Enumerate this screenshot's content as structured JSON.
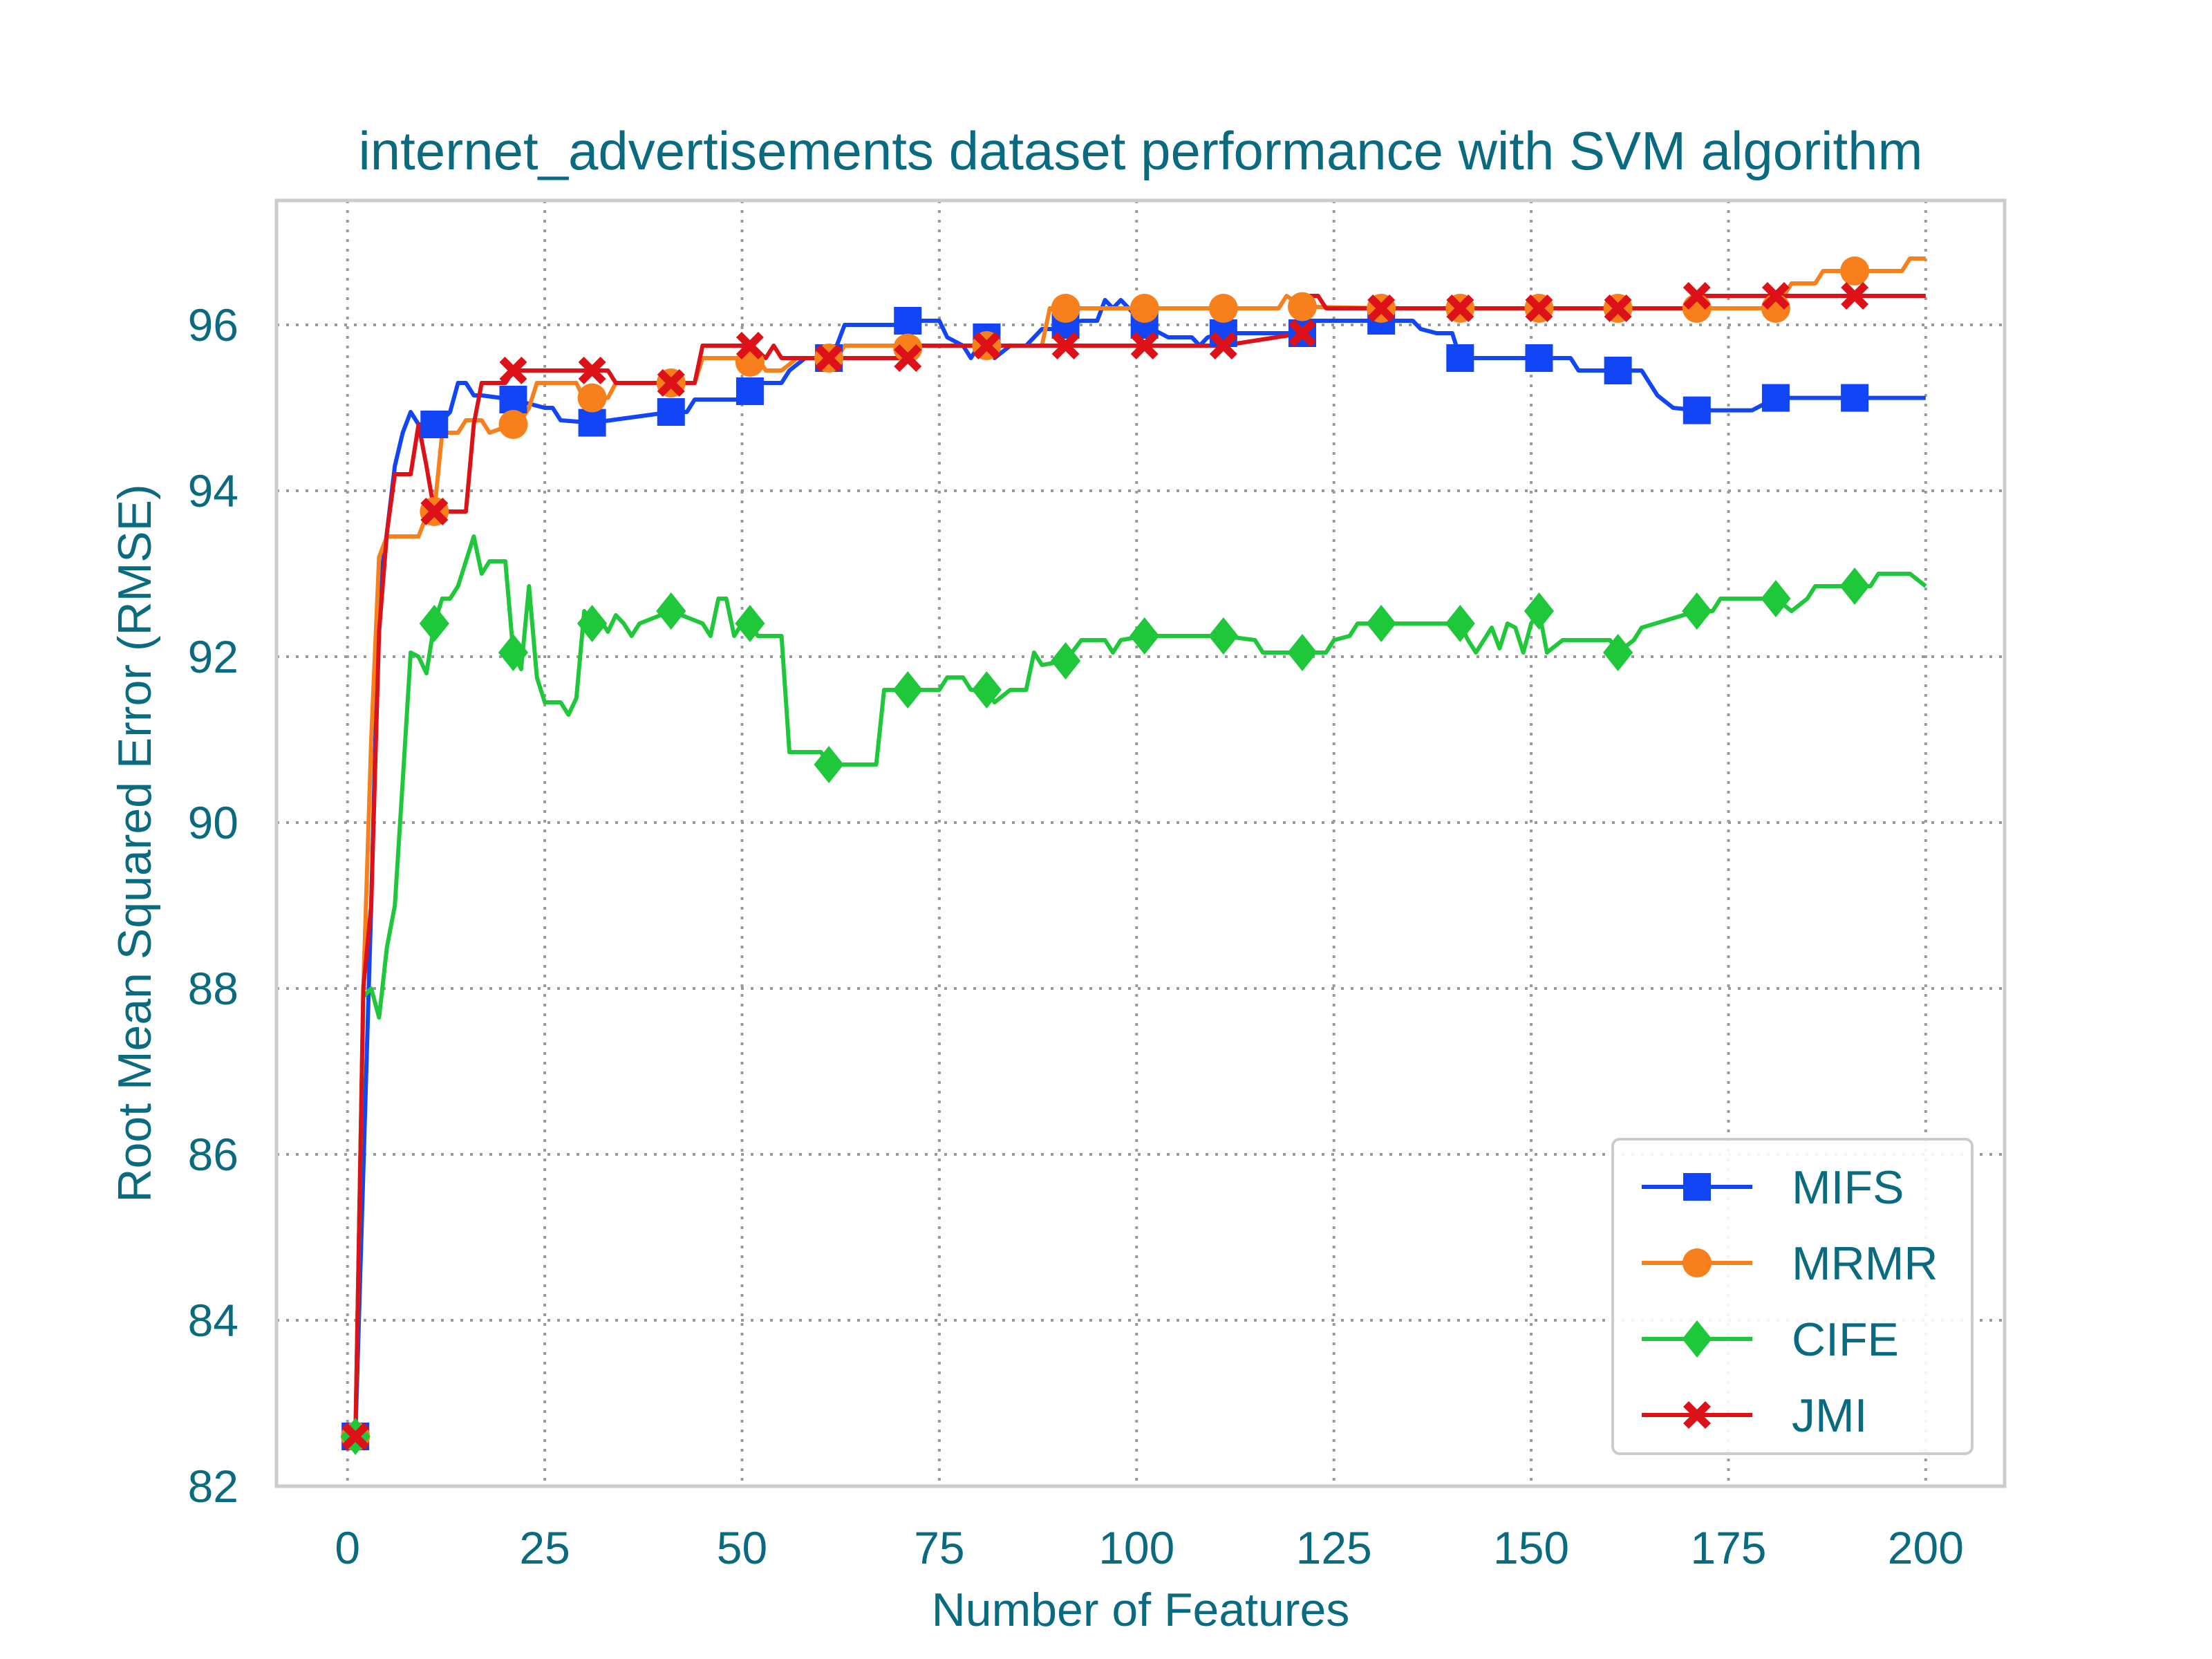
{
  "colors": {
    "text": "#0a6a80",
    "grid": "#9a9a9a",
    "frame": "#cccccc",
    "MIFS": "#1245f5",
    "MRMR": "#f7801c",
    "CIFE": "#1fc83a",
    "JMI": "#dc1218"
  },
  "chart_data": {
    "type": "line",
    "title": "internet_advertisements dataset performance with SVM algorithm",
    "xlabel": "Number of Features",
    "ylabel": "Root Mean Squared Error (RMSE)",
    "xlim": [
      -9,
      210
    ],
    "ylim": [
      82,
      97.5
    ],
    "xticks": [
      0,
      25,
      50,
      75,
      100,
      125,
      150,
      175,
      200
    ],
    "yticks": [
      82,
      84,
      86,
      88,
      90,
      92,
      94,
      96
    ],
    "grid": true,
    "legend_position": "lower right",
    "series": [
      {
        "name": "MIFS",
        "marker": "square",
        "points": [
          [
            1,
            82.6
          ],
          [
            3,
            89.0
          ],
          [
            4,
            92.8
          ],
          [
            5,
            93.5
          ],
          [
            6,
            94.3
          ],
          [
            7,
            94.7
          ],
          [
            8,
            94.95
          ],
          [
            9,
            94.8
          ],
          [
            11,
            94.8
          ],
          [
            12,
            94.85
          ],
          [
            13,
            94.95
          ],
          [
            14,
            95.3
          ],
          [
            15,
            95.3
          ],
          [
            16,
            95.15
          ],
          [
            17,
            95.15
          ],
          [
            21,
            95.1
          ],
          [
            25,
            95.0
          ],
          [
            26,
            95.0
          ],
          [
            27,
            94.85
          ],
          [
            31,
            94.82
          ],
          [
            41,
            94.95
          ],
          [
            43,
            94.95
          ],
          [
            44,
            95.1
          ],
          [
            50,
            95.1
          ],
          [
            52,
            95.3
          ],
          [
            55,
            95.3
          ],
          [
            56,
            95.45
          ],
          [
            58,
            95.6
          ],
          [
            61,
            95.6
          ],
          [
            62,
            95.75
          ],
          [
            63,
            96.0
          ],
          [
            70,
            96.0
          ],
          [
            71,
            96.05
          ],
          [
            75,
            96.05
          ],
          [
            76,
            95.85
          ],
          [
            78,
            95.75
          ],
          [
            79,
            95.6
          ],
          [
            80,
            95.75
          ],
          [
            81,
            95.85
          ],
          [
            82,
            95.6
          ],
          [
            84,
            95.75
          ],
          [
            86,
            95.75
          ],
          [
            87,
            95.85
          ],
          [
            88,
            95.95
          ],
          [
            90,
            95.95
          ],
          [
            91,
            96.0
          ],
          [
            93,
            96.05
          ],
          [
            95,
            96.05
          ],
          [
            96,
            96.3
          ],
          [
            97,
            96.2
          ],
          [
            98,
            96.3
          ],
          [
            99,
            96.2
          ],
          [
            100,
            96.1
          ],
          [
            101,
            96.0
          ],
          [
            102,
            95.95
          ],
          [
            104,
            95.85
          ],
          [
            107,
            95.85
          ],
          [
            108,
            95.75
          ],
          [
            109,
            95.85
          ],
          [
            111,
            95.9
          ],
          [
            121,
            95.9
          ],
          [
            122,
            96.05
          ],
          [
            131,
            96.05
          ],
          [
            135,
            96.05
          ],
          [
            136,
            95.95
          ],
          [
            138,
            95.9
          ],
          [
            140,
            95.9
          ],
          [
            141,
            95.6
          ],
          [
            151,
            95.6
          ],
          [
            155,
            95.6
          ],
          [
            156,
            95.45
          ],
          [
            161,
            95.45
          ],
          [
            164,
            95.45
          ],
          [
            165,
            95.3
          ],
          [
            166,
            95.15
          ],
          [
            168,
            95.0
          ],
          [
            171,
            94.97
          ],
          [
            178,
            94.97
          ],
          [
            181,
            95.12
          ],
          [
            191,
            95.12
          ],
          [
            200,
            95.12
          ]
        ],
        "markers_at": [
          1,
          11,
          21,
          31,
          41,
          51,
          61,
          71,
          81,
          91,
          101,
          111,
          121,
          131,
          141,
          151,
          161,
          171,
          181,
          191
        ]
      },
      {
        "name": "MRMR",
        "marker": "circle",
        "points": [
          [
            1,
            82.6
          ],
          [
            2,
            88.0
          ],
          [
            3,
            91.0
          ],
          [
            4,
            93.2
          ],
          [
            5,
            93.45
          ],
          [
            9,
            93.45
          ],
          [
            10,
            93.7
          ],
          [
            11,
            93.75
          ],
          [
            12,
            94.7
          ],
          [
            14,
            94.7
          ],
          [
            15,
            94.85
          ],
          [
            17,
            94.85
          ],
          [
            18,
            94.7
          ],
          [
            21,
            94.8
          ],
          [
            22,
            94.85
          ],
          [
            23,
            95.0
          ],
          [
            24,
            95.3
          ],
          [
            29,
            95.3
          ],
          [
            30,
            95.1
          ],
          [
            31,
            95.12
          ],
          [
            33,
            95.12
          ],
          [
            34,
            95.3
          ],
          [
            40,
            95.3
          ],
          [
            41,
            95.3
          ],
          [
            44,
            95.3
          ],
          [
            45,
            95.6
          ],
          [
            50,
            95.6
          ],
          [
            51,
            95.55
          ],
          [
            52,
            95.6
          ],
          [
            53,
            95.45
          ],
          [
            55,
            95.45
          ],
          [
            57,
            95.6
          ],
          [
            62,
            95.6
          ],
          [
            63,
            95.75
          ],
          [
            70,
            95.75
          ],
          [
            71,
            95.72
          ],
          [
            73,
            95.75
          ],
          [
            88,
            95.75
          ],
          [
            89,
            96.2
          ],
          [
            101,
            96.2
          ],
          [
            102,
            96.2
          ],
          [
            118,
            96.2
          ],
          [
            119,
            96.35
          ],
          [
            121,
            96.22
          ],
          [
            131,
            96.2
          ],
          [
            132,
            96.2
          ],
          [
            171,
            96.2
          ],
          [
            181,
            96.2
          ],
          [
            182,
            96.35
          ],
          [
            183,
            96.5
          ],
          [
            186,
            96.5
          ],
          [
            187,
            96.65
          ],
          [
            191,
            96.65
          ],
          [
            197,
            96.65
          ],
          [
            198,
            96.8
          ],
          [
            200,
            96.8
          ]
        ],
        "markers_at": [
          1,
          11,
          21,
          31,
          41,
          51,
          61,
          71,
          81,
          91,
          101,
          111,
          121,
          131,
          141,
          151,
          161,
          171,
          181,
          191
        ]
      },
      {
        "name": "CIFE",
        "marker": "diamond",
        "points": [
          [
            1,
            82.6
          ],
          [
            2,
            87.9
          ],
          [
            3,
            88.0
          ],
          [
            4,
            87.65
          ],
          [
            5,
            88.5
          ],
          [
            6,
            89.0
          ],
          [
            7,
            90.5
          ],
          [
            8,
            92.05
          ],
          [
            9,
            92.0
          ],
          [
            10,
            91.8
          ],
          [
            11,
            92.4
          ],
          [
            12,
            92.7
          ],
          [
            13,
            92.7
          ],
          [
            14,
            92.85
          ],
          [
            15,
            93.15
          ],
          [
            16,
            93.45
          ],
          [
            17,
            93.0
          ],
          [
            18,
            93.15
          ],
          [
            20,
            93.15
          ],
          [
            21,
            92.05
          ],
          [
            22,
            91.85
          ],
          [
            23,
            92.85
          ],
          [
            24,
            91.75
          ],
          [
            25,
            91.45
          ],
          [
            27,
            91.45
          ],
          [
            28,
            91.3
          ],
          [
            29,
            91.5
          ],
          [
            30,
            92.55
          ],
          [
            31,
            92.4
          ],
          [
            32,
            92.45
          ],
          [
            33,
            92.3
          ],
          [
            34,
            92.5
          ],
          [
            35,
            92.4
          ],
          [
            36,
            92.25
          ],
          [
            37,
            92.4
          ],
          [
            41,
            92.55
          ],
          [
            45,
            92.4
          ],
          [
            46,
            92.25
          ],
          [
            47,
            92.7
          ],
          [
            48,
            92.7
          ],
          [
            49,
            92.25
          ],
          [
            50,
            92.4
          ],
          [
            51,
            92.4
          ],
          [
            52,
            92.25
          ],
          [
            55,
            92.25
          ],
          [
            56,
            90.85
          ],
          [
            60,
            90.85
          ],
          [
            61,
            90.7
          ],
          [
            67,
            90.7
          ],
          [
            68,
            91.6
          ],
          [
            70,
            91.6
          ],
          [
            71,
            91.6
          ],
          [
            75,
            91.6
          ],
          [
            76,
            91.75
          ],
          [
            78,
            91.75
          ],
          [
            79,
            91.6
          ],
          [
            80,
            91.6
          ],
          [
            81,
            91.6
          ],
          [
            82,
            91.45
          ],
          [
            84,
            91.6
          ],
          [
            86,
            91.6
          ],
          [
            87,
            92.05
          ],
          [
            88,
            91.9
          ],
          [
            91,
            91.95
          ],
          [
            93,
            92.2
          ],
          [
            96,
            92.2
          ],
          [
            97,
            92.05
          ],
          [
            98,
            92.2
          ],
          [
            101,
            92.25
          ],
          [
            111,
            92.25
          ],
          [
            115,
            92.2
          ],
          [
            116,
            92.05
          ],
          [
            119,
            92.05
          ],
          [
            121,
            92.05
          ],
          [
            124,
            92.05
          ],
          [
            125,
            92.2
          ],
          [
            127,
            92.25
          ],
          [
            128,
            92.4
          ],
          [
            131,
            92.4
          ],
          [
            141,
            92.4
          ],
          [
            142,
            92.2
          ],
          [
            143,
            92.05
          ],
          [
            144,
            92.2
          ],
          [
            145,
            92.35
          ],
          [
            146,
            92.1
          ],
          [
            147,
            92.4
          ],
          [
            148,
            92.35
          ],
          [
            149,
            92.05
          ],
          [
            150,
            92.4
          ],
          [
            151,
            92.55
          ],
          [
            152,
            92.05
          ],
          [
            154,
            92.2
          ],
          [
            160,
            92.2
          ],
          [
            161,
            92.05
          ],
          [
            163,
            92.2
          ],
          [
            164,
            92.35
          ],
          [
            171,
            92.55
          ],
          [
            173,
            92.55
          ],
          [
            174,
            92.7
          ],
          [
            181,
            92.7
          ],
          [
            183,
            92.55
          ],
          [
            185,
            92.7
          ],
          [
            186,
            92.85
          ],
          [
            191,
            92.85
          ],
          [
            193,
            92.85
          ],
          [
            194,
            93.0
          ],
          [
            198,
            93.0
          ],
          [
            200,
            92.85
          ]
        ],
        "markers_at": [
          1,
          11,
          21,
          31,
          41,
          51,
          61,
          71,
          81,
          91,
          101,
          111,
          121,
          131,
          141,
          151,
          161,
          171,
          181,
          191
        ]
      },
      {
        "name": "JMI",
        "marker": "x",
        "points": [
          [
            1,
            82.6
          ],
          [
            2,
            88.0
          ],
          [
            3,
            89.0
          ],
          [
            4,
            92.3
          ],
          [
            5,
            93.5
          ],
          [
            6,
            94.2
          ],
          [
            8,
            94.2
          ],
          [
            9,
            94.8
          ],
          [
            10,
            94.3
          ],
          [
            11,
            93.75
          ],
          [
            15,
            93.75
          ],
          [
            16,
            94.8
          ],
          [
            17,
            95.3
          ],
          [
            20,
            95.3
          ],
          [
            21,
            95.45
          ],
          [
            31,
            95.45
          ],
          [
            33,
            95.45
          ],
          [
            34,
            95.3
          ],
          [
            41,
            95.3
          ],
          [
            44,
            95.3
          ],
          [
            45,
            95.75
          ],
          [
            50,
            95.75
          ],
          [
            51,
            95.75
          ],
          [
            53,
            95.6
          ],
          [
            54,
            95.75
          ],
          [
            55,
            95.6
          ],
          [
            61,
            95.6
          ],
          [
            71,
            95.6
          ],
          [
            72,
            95.75
          ],
          [
            81,
            95.75
          ],
          [
            91,
            95.75
          ],
          [
            101,
            95.75
          ],
          [
            111,
            95.75
          ],
          [
            121,
            95.9
          ],
          [
            122,
            96.35
          ],
          [
            123,
            96.35
          ],
          [
            124,
            96.2
          ],
          [
            131,
            96.2
          ],
          [
            141,
            96.2
          ],
          [
            151,
            96.2
          ],
          [
            161,
            96.2
          ],
          [
            170,
            96.2
          ],
          [
            171,
            96.35
          ],
          [
            181,
            96.35
          ],
          [
            191,
            96.35
          ],
          [
            200,
            96.35
          ]
        ],
        "markers_at": [
          1,
          11,
          21,
          31,
          41,
          51,
          61,
          71,
          81,
          91,
          101,
          111,
          121,
          131,
          141,
          151,
          161,
          171,
          181,
          191
        ]
      }
    ]
  }
}
